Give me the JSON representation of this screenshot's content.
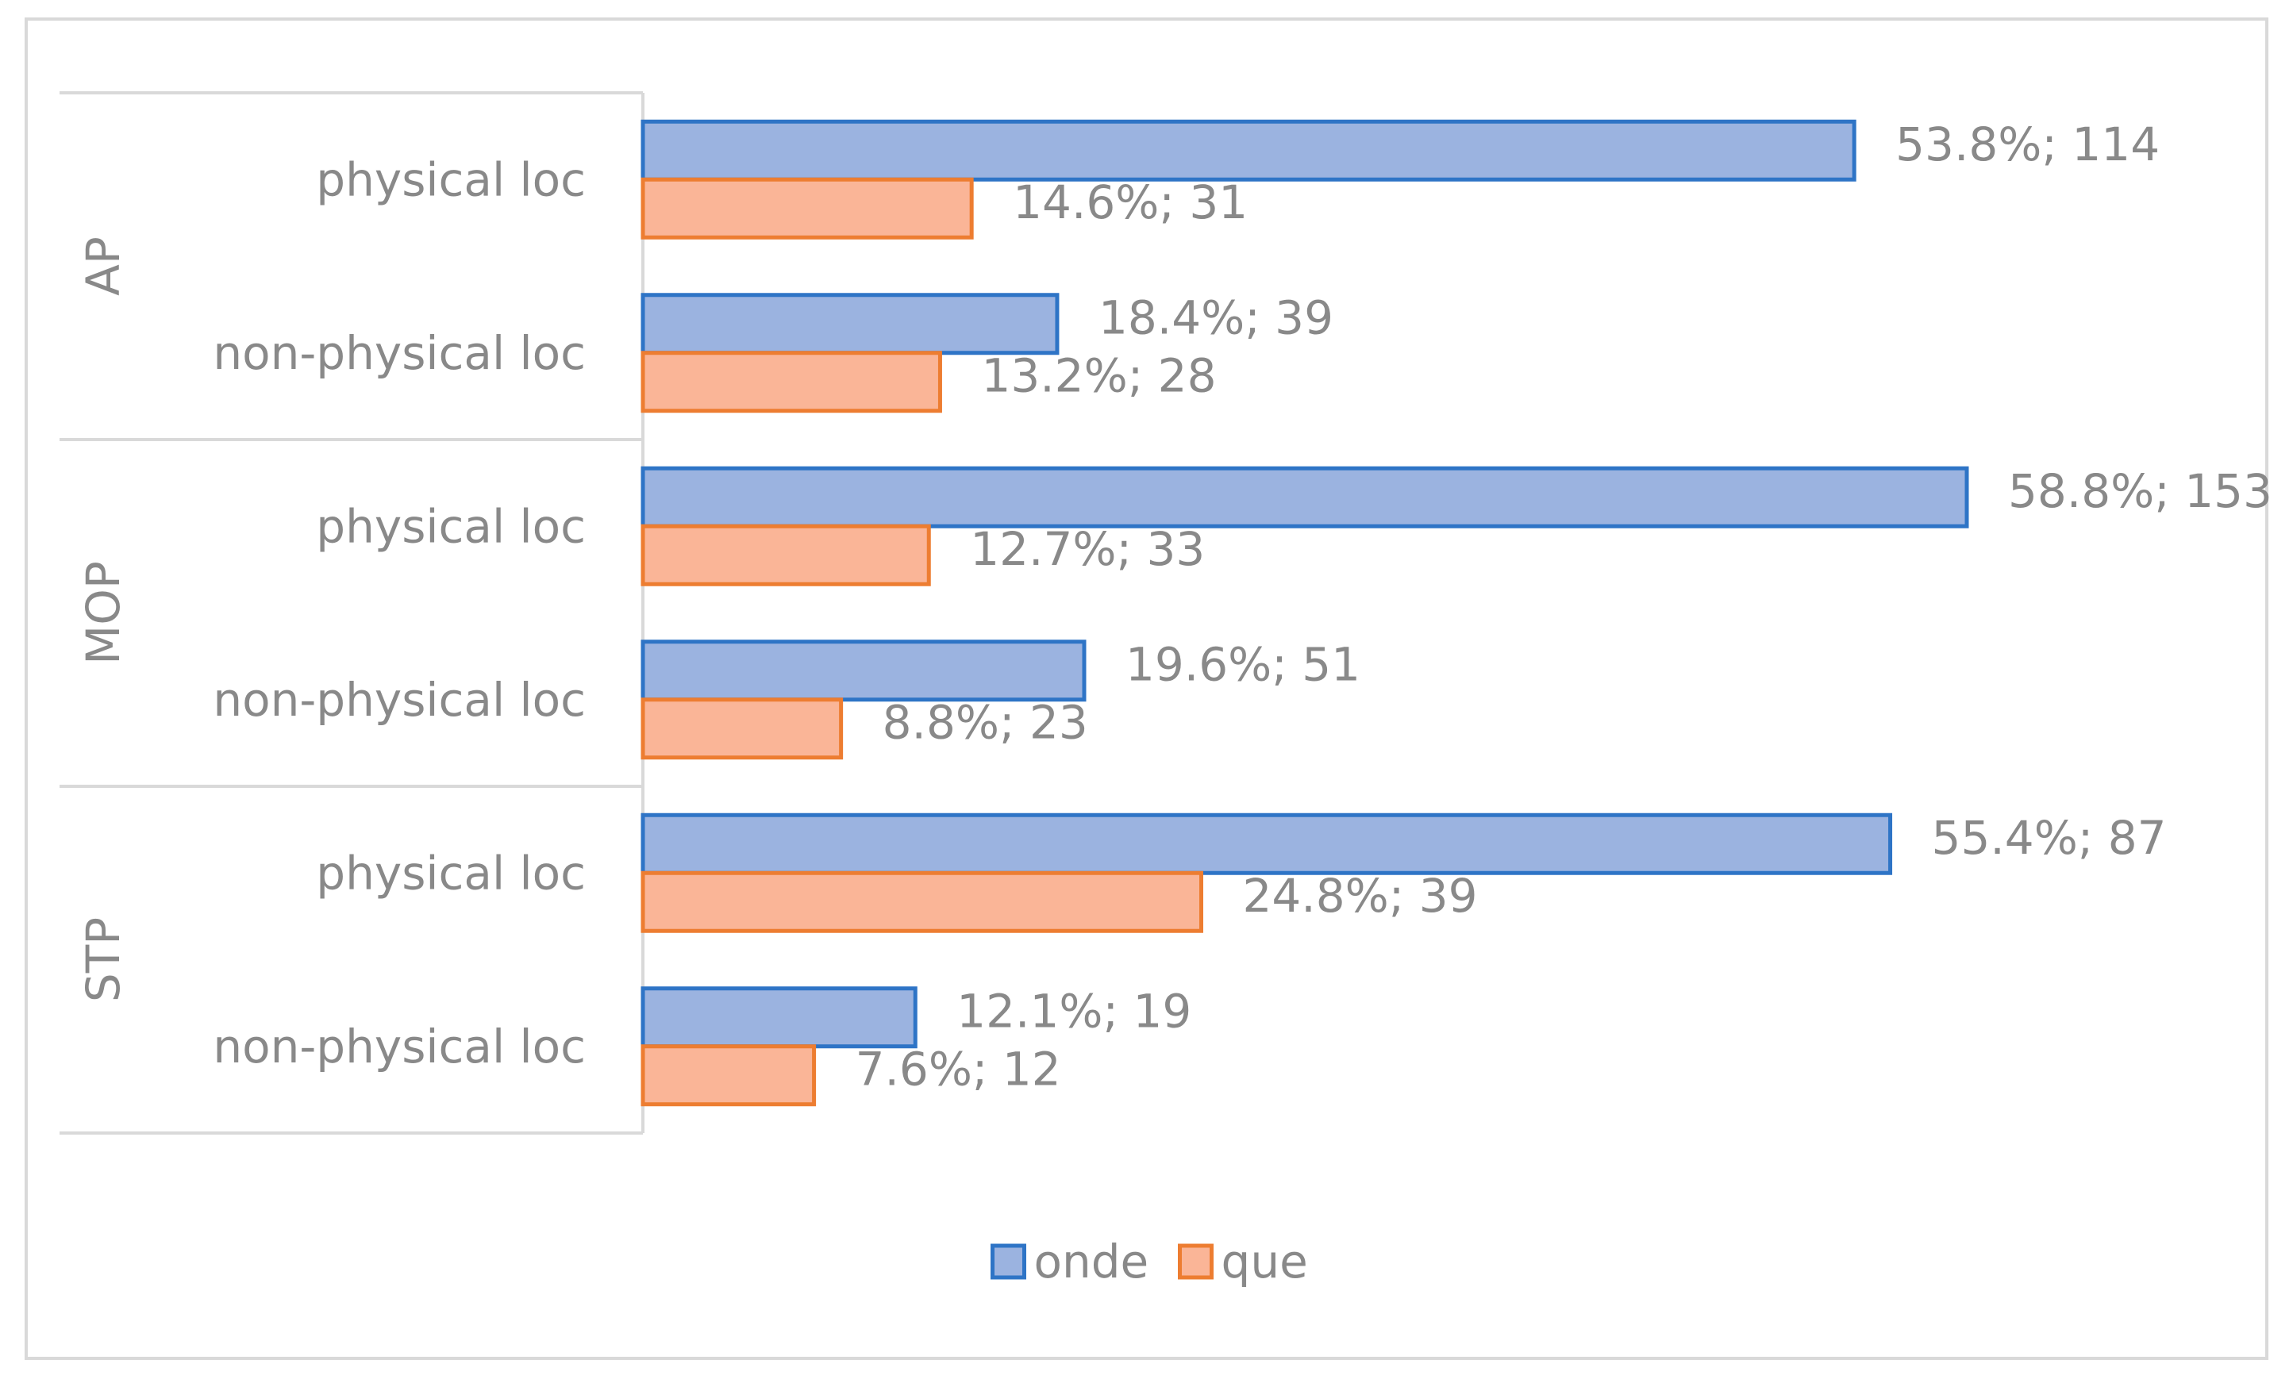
{
  "chart_data": {
    "type": "bar",
    "orientation": "horizontal",
    "groups": [
      {
        "name": "AP",
        "categories": [
          {
            "name": "physical loc",
            "values": [
              {
                "pct": 53.8,
                "count": 114,
                "label": "53.8%; 114"
              },
              {
                "pct": 14.6,
                "count": 31,
                "label": "14.6%; 31"
              }
            ]
          },
          {
            "name": "non-physical loc",
            "values": [
              {
                "pct": 18.4,
                "count": 39,
                "label": "18.4%; 39"
              },
              {
                "pct": 13.2,
                "count": 28,
                "label": "13.2%; 28"
              }
            ]
          }
        ]
      },
      {
        "name": "MOP",
        "categories": [
          {
            "name": "physical loc",
            "values": [
              {
                "pct": 58.8,
                "count": 153,
                "label": "58.8%; 153"
              },
              {
                "pct": 12.7,
                "count": 33,
                "label": "12.7%; 33"
              }
            ]
          },
          {
            "name": "non-physical loc",
            "values": [
              {
                "pct": 19.6,
                "count": 51,
                "label": "19.6%; 51"
              },
              {
                "pct": 8.8,
                "count": 23,
                "label": "8.8%; 23"
              }
            ]
          }
        ]
      },
      {
        "name": "STP",
        "categories": [
          {
            "name": "physical loc",
            "values": [
              {
                "pct": 55.4,
                "count": 87,
                "label": "55.4%; 87"
              },
              {
                "pct": 24.8,
                "count": 39,
                "label": "24.8%; 39"
              }
            ]
          },
          {
            "name": "non-physical loc",
            "values": [
              {
                "pct": 12.1,
                "count": 19,
                "label": "12.1%; 19"
              },
              {
                "pct": 7.6,
                "count": 12,
                "label": "7.6%; 12"
              }
            ]
          }
        ]
      }
    ],
    "series": [
      {
        "name": "onde",
        "fill": "#9bb3e0",
        "stroke": "#2e74c6"
      },
      {
        "name": "que",
        "fill": "#fab597",
        "stroke": "#ed7d31"
      }
    ],
    "value_axis": {
      "unit": "%",
      "range": [
        0,
        60
      ],
      "visible": false
    },
    "legend": {
      "position": "bottom"
    },
    "grid": false
  }
}
